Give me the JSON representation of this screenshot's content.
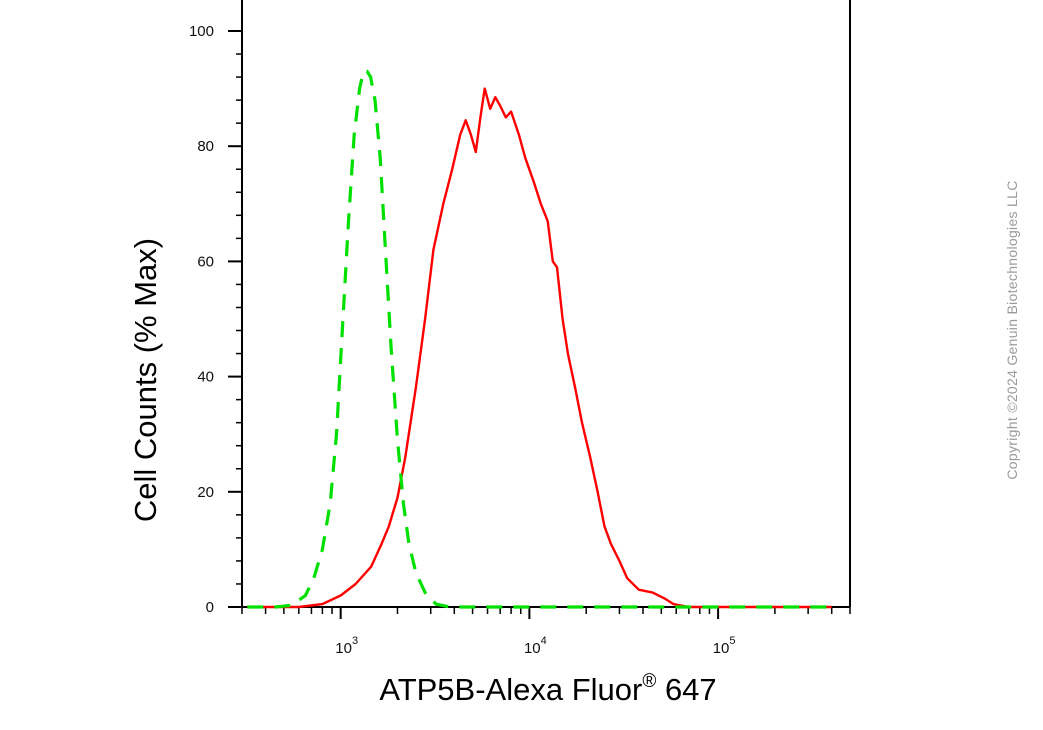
{
  "chart_data": {
    "type": "line",
    "title": "",
    "xlabel_main": "ATP5B-Alexa Fluor",
    "xlabel_sup": "®",
    "xlabel_tail": " 647",
    "ylabel": "Cell Counts (% Max)",
    "x_scale": "log",
    "xlim": [
      300,
      500000
    ],
    "ylim": [
      0,
      100
    ],
    "y_ticks": [
      0,
      20,
      40,
      60,
      80,
      100
    ],
    "x_ticks": [
      {
        "value": 1000,
        "base": "10",
        "exp": "3"
      },
      {
        "value": 10000,
        "base": "10",
        "exp": "4"
      },
      {
        "value": 100000,
        "base": "10",
        "exp": "5"
      }
    ],
    "grid": false,
    "legend": "none",
    "series": [
      {
        "color": "#ff0000",
        "dash": "solid",
        "points": [
          [
            320,
            0
          ],
          [
            600,
            0
          ],
          [
            800,
            0.5
          ],
          [
            1000,
            2
          ],
          [
            1200,
            4
          ],
          [
            1450,
            7
          ],
          [
            1650,
            11
          ],
          [
            1800,
            14
          ],
          [
            2000,
            19
          ],
          [
            2200,
            26
          ],
          [
            2500,
            38
          ],
          [
            2800,
            50
          ],
          [
            3100,
            62
          ],
          [
            3500,
            70
          ],
          [
            3900,
            76
          ],
          [
            4300,
            82
          ],
          [
            4600,
            84.5
          ],
          [
            4900,
            82
          ],
          [
            5200,
            79
          ],
          [
            5500,
            85
          ],
          [
            5800,
            90
          ],
          [
            6200,
            86.5
          ],
          [
            6600,
            88.5
          ],
          [
            7000,
            87
          ],
          [
            7500,
            85
          ],
          [
            8000,
            86
          ],
          [
            8800,
            82
          ],
          [
            9500,
            78
          ],
          [
            10500,
            74
          ],
          [
            11500,
            70
          ],
          [
            12500,
            67
          ],
          [
            13300,
            60
          ],
          [
            14000,
            59
          ],
          [
            15000,
            50
          ],
          [
            16000,
            44
          ],
          [
            17500,
            38
          ],
          [
            19000,
            32
          ],
          [
            21000,
            26
          ],
          [
            23000,
            20
          ],
          [
            25000,
            14
          ],
          [
            27000,
            11
          ],
          [
            30000,
            8
          ],
          [
            33000,
            5
          ],
          [
            38000,
            3
          ],
          [
            45000,
            2.5
          ],
          [
            52000,
            1.5
          ],
          [
            58000,
            0.5
          ],
          [
            70000,
            0
          ],
          [
            100000,
            0
          ],
          [
            400000,
            0
          ]
        ]
      },
      {
        "color": "#00e000",
        "dash": "dashed",
        "points": [
          [
            320,
            0
          ],
          [
            450,
            0
          ],
          [
            550,
            0.3
          ],
          [
            650,
            2
          ],
          [
            720,
            5
          ],
          [
            800,
            10
          ],
          [
            880,
            18
          ],
          [
            950,
            30
          ],
          [
            1020,
            48
          ],
          [
            1100,
            67
          ],
          [
            1180,
            82
          ],
          [
            1260,
            90
          ],
          [
            1320,
            93
          ],
          [
            1380,
            93
          ],
          [
            1440,
            92
          ],
          [
            1520,
            88
          ],
          [
            1620,
            78
          ],
          [
            1720,
            63
          ],
          [
            1850,
            45
          ],
          [
            2000,
            29
          ],
          [
            2150,
            18
          ],
          [
            2300,
            11
          ],
          [
            2500,
            6
          ],
          [
            2800,
            2.5
          ],
          [
            3200,
            0.5
          ],
          [
            3800,
            0
          ],
          [
            10000,
            0
          ],
          [
            100000,
            0
          ],
          [
            400000,
            0
          ]
        ]
      }
    ]
  },
  "copyright": "Copyright ©2024 Genuin Biotechnologies LLC"
}
